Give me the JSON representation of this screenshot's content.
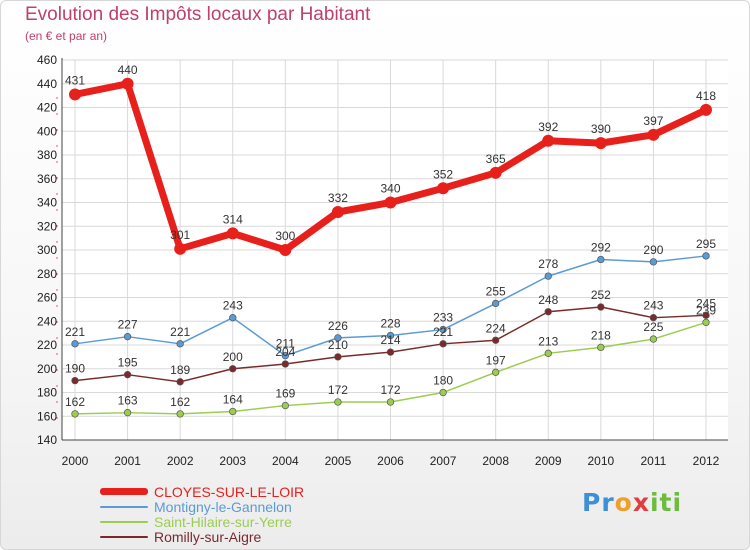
{
  "chart_data": {
    "type": "line",
    "title": "Evolution des Impôts locaux par Habitant",
    "subtitle": "(en € et par an)",
    "x": [
      "2000",
      "2001",
      "2002",
      "2003",
      "2004",
      "2005",
      "2006",
      "2007",
      "2008",
      "2009",
      "2010",
      "2011",
      "2012"
    ],
    "ylim": [
      140,
      460
    ],
    "yticks": [
      140,
      160,
      180,
      200,
      220,
      240,
      260,
      280,
      300,
      320,
      340,
      360,
      380,
      400,
      420,
      440,
      460
    ],
    "grid": true,
    "legend_position": "bottom-left",
    "series": [
      {
        "name": "CLOYES-SUR-LE-LOIR",
        "color": "#e8201c",
        "values": [
          431,
          440,
          301,
          314,
          300,
          332,
          340,
          352,
          365,
          392,
          390,
          397,
          418
        ]
      },
      {
        "name": "Montigny-le-Gannelon",
        "color": "#5b9bd5",
        "values": [
          221,
          227,
          221,
          243,
          211,
          226,
          228,
          233,
          255,
          278,
          292,
          290,
          295
        ]
      },
      {
        "name": "Saint-Hilaire-sur-Yerre",
        "color": "#9acd50",
        "values": [
          162,
          163,
          162,
          164,
          169,
          172,
          172,
          180,
          197,
          213,
          218,
          225,
          239
        ]
      },
      {
        "name": "Romilly-sur-Aigre",
        "color": "#7a2a2a",
        "values": [
          190,
          195,
          189,
          200,
          204,
          210,
          214,
          221,
          224,
          248,
          252,
          243,
          245
        ]
      }
    ]
  },
  "brand": {
    "letters": [
      "Pr",
      "o",
      "x",
      "iti"
    ],
    "colors": [
      "#3d8fd6",
      "#f0a02a",
      "#e43c3c",
      "#6cbc3e"
    ]
  }
}
